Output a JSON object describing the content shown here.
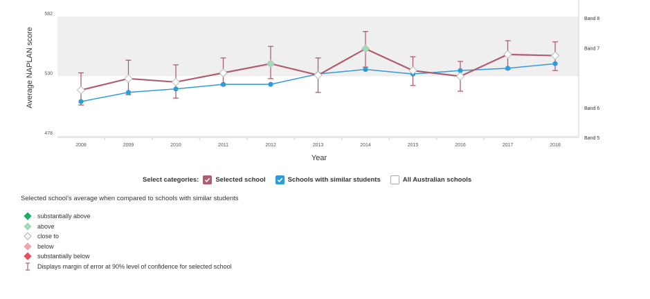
{
  "chart_data": {
    "type": "line",
    "xlabel": "Year",
    "ylabel": "Average NAPLAN score",
    "x": [
      2008,
      2009,
      2010,
      2011,
      2012,
      2013,
      2014,
      2015,
      2016,
      2017,
      2018
    ],
    "ylim": [
      478,
      582
    ],
    "yticks": [
      478,
      530,
      582
    ],
    "bands": [
      {
        "label": "Band 5",
        "value": 478
      },
      {
        "label": "Band 6",
        "value": 504
      },
      {
        "label": "Band 7",
        "value": 556
      },
      {
        "label": "Band 8",
        "value": 582
      }
    ],
    "shaded_range": [
      530,
      582
    ],
    "series": [
      {
        "name": "Selected school",
        "color": "#b05c6e",
        "values": [
          518,
          528,
          525,
          533,
          541,
          531,
          554,
          535,
          530,
          549,
          548
        ],
        "error_low": [
          505,
          514,
          511,
          522,
          528,
          516,
          538,
          522,
          517,
          536,
          535
        ],
        "error_high": [
          533,
          544,
          540,
          546,
          556,
          546,
          569,
          547,
          543,
          561,
          560
        ],
        "markers": [
          "close",
          "close",
          "close",
          "close",
          "above",
          "close",
          "above",
          "close",
          "close",
          "close",
          "close"
        ]
      },
      {
        "name": "Schools with similar students",
        "color": "#2f9bd8",
        "values": [
          508,
          516,
          519,
          523,
          523,
          532,
          536,
          532,
          535,
          537,
          541
        ]
      }
    ]
  },
  "marker_colors": {
    "above": "#9fdcb8",
    "close": "#ffffff",
    "below": "#f0a5ae",
    "substantially_above": "#1cae64",
    "substantially_below": "#e8505a"
  },
  "categories": {
    "heading": "Select categories:",
    "items": [
      {
        "label": "Selected school",
        "checked": true,
        "color": "#b05c6e"
      },
      {
        "label": "Schools with similar students",
        "checked": true,
        "color": "#2f9bd8"
      },
      {
        "label": "All Australian schools",
        "checked": false,
        "color": "#ffffff"
      }
    ]
  },
  "legend": {
    "title": "Selected school’s average when compared to schools with similar students",
    "items": [
      {
        "label": "substantially above",
        "kind": "diamond",
        "color": "#1cae64"
      },
      {
        "label": "above",
        "kind": "diamond",
        "color": "#9fdcb8"
      },
      {
        "label": "close to",
        "kind": "diamond",
        "color": "#ffffff"
      },
      {
        "label": "below",
        "kind": "diamond",
        "color": "#f0a5ae"
      },
      {
        "label": "substantially below",
        "kind": "diamond",
        "color": "#e8505a"
      },
      {
        "label": "Displays margin of error at 90% level of confidence for selected school",
        "kind": "errorbar",
        "color": "#b05c6e"
      }
    ]
  }
}
